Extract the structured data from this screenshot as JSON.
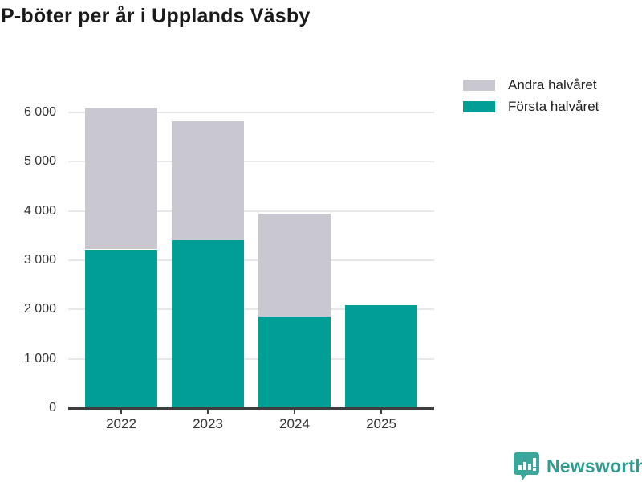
{
  "title": "P-böter per år i Upplands Väsby",
  "legend": {
    "items": [
      {
        "label": "Andra halvåret",
        "color": "#c9c8d0"
      },
      {
        "label": "Första halvåret",
        "color": "#009e95"
      }
    ]
  },
  "chart_data": {
    "type": "bar",
    "stacked": true,
    "title": "P-böter per år i Upplands Väsby",
    "categories": [
      "2022",
      "2023",
      "2024",
      "2025"
    ],
    "series": [
      {
        "name": "Första halvåret",
        "color": "#009e95",
        "values": [
          3220,
          3400,
          1860,
          2090
        ]
      },
      {
        "name": "Andra halvåret",
        "color": "#c9c8d0",
        "values": [
          2870,
          2420,
          2090,
          0
        ]
      }
    ],
    "totals": [
      6090,
      5820,
      3950,
      2090
    ],
    "xlabel": "",
    "ylabel": "",
    "ylim": [
      0,
      6500
    ],
    "yticks": [
      0,
      1000,
      2000,
      3000,
      4000,
      5000,
      6000
    ],
    "ytick_labels": [
      "0",
      "1 000",
      "2 000",
      "3 000",
      "4 000",
      "5 000",
      "6 000"
    ],
    "grid": true,
    "legend_position": "top-right"
  },
  "footer": {
    "brand": "Newsworthy"
  },
  "colors": {
    "first_half": "#009e95",
    "second_half": "#c9c8d0",
    "axis": "#3d3d3d",
    "gridline": "#e7e7e9",
    "brand_teal": "#3ba79c",
    "brand_text": "#2f9c91"
  }
}
